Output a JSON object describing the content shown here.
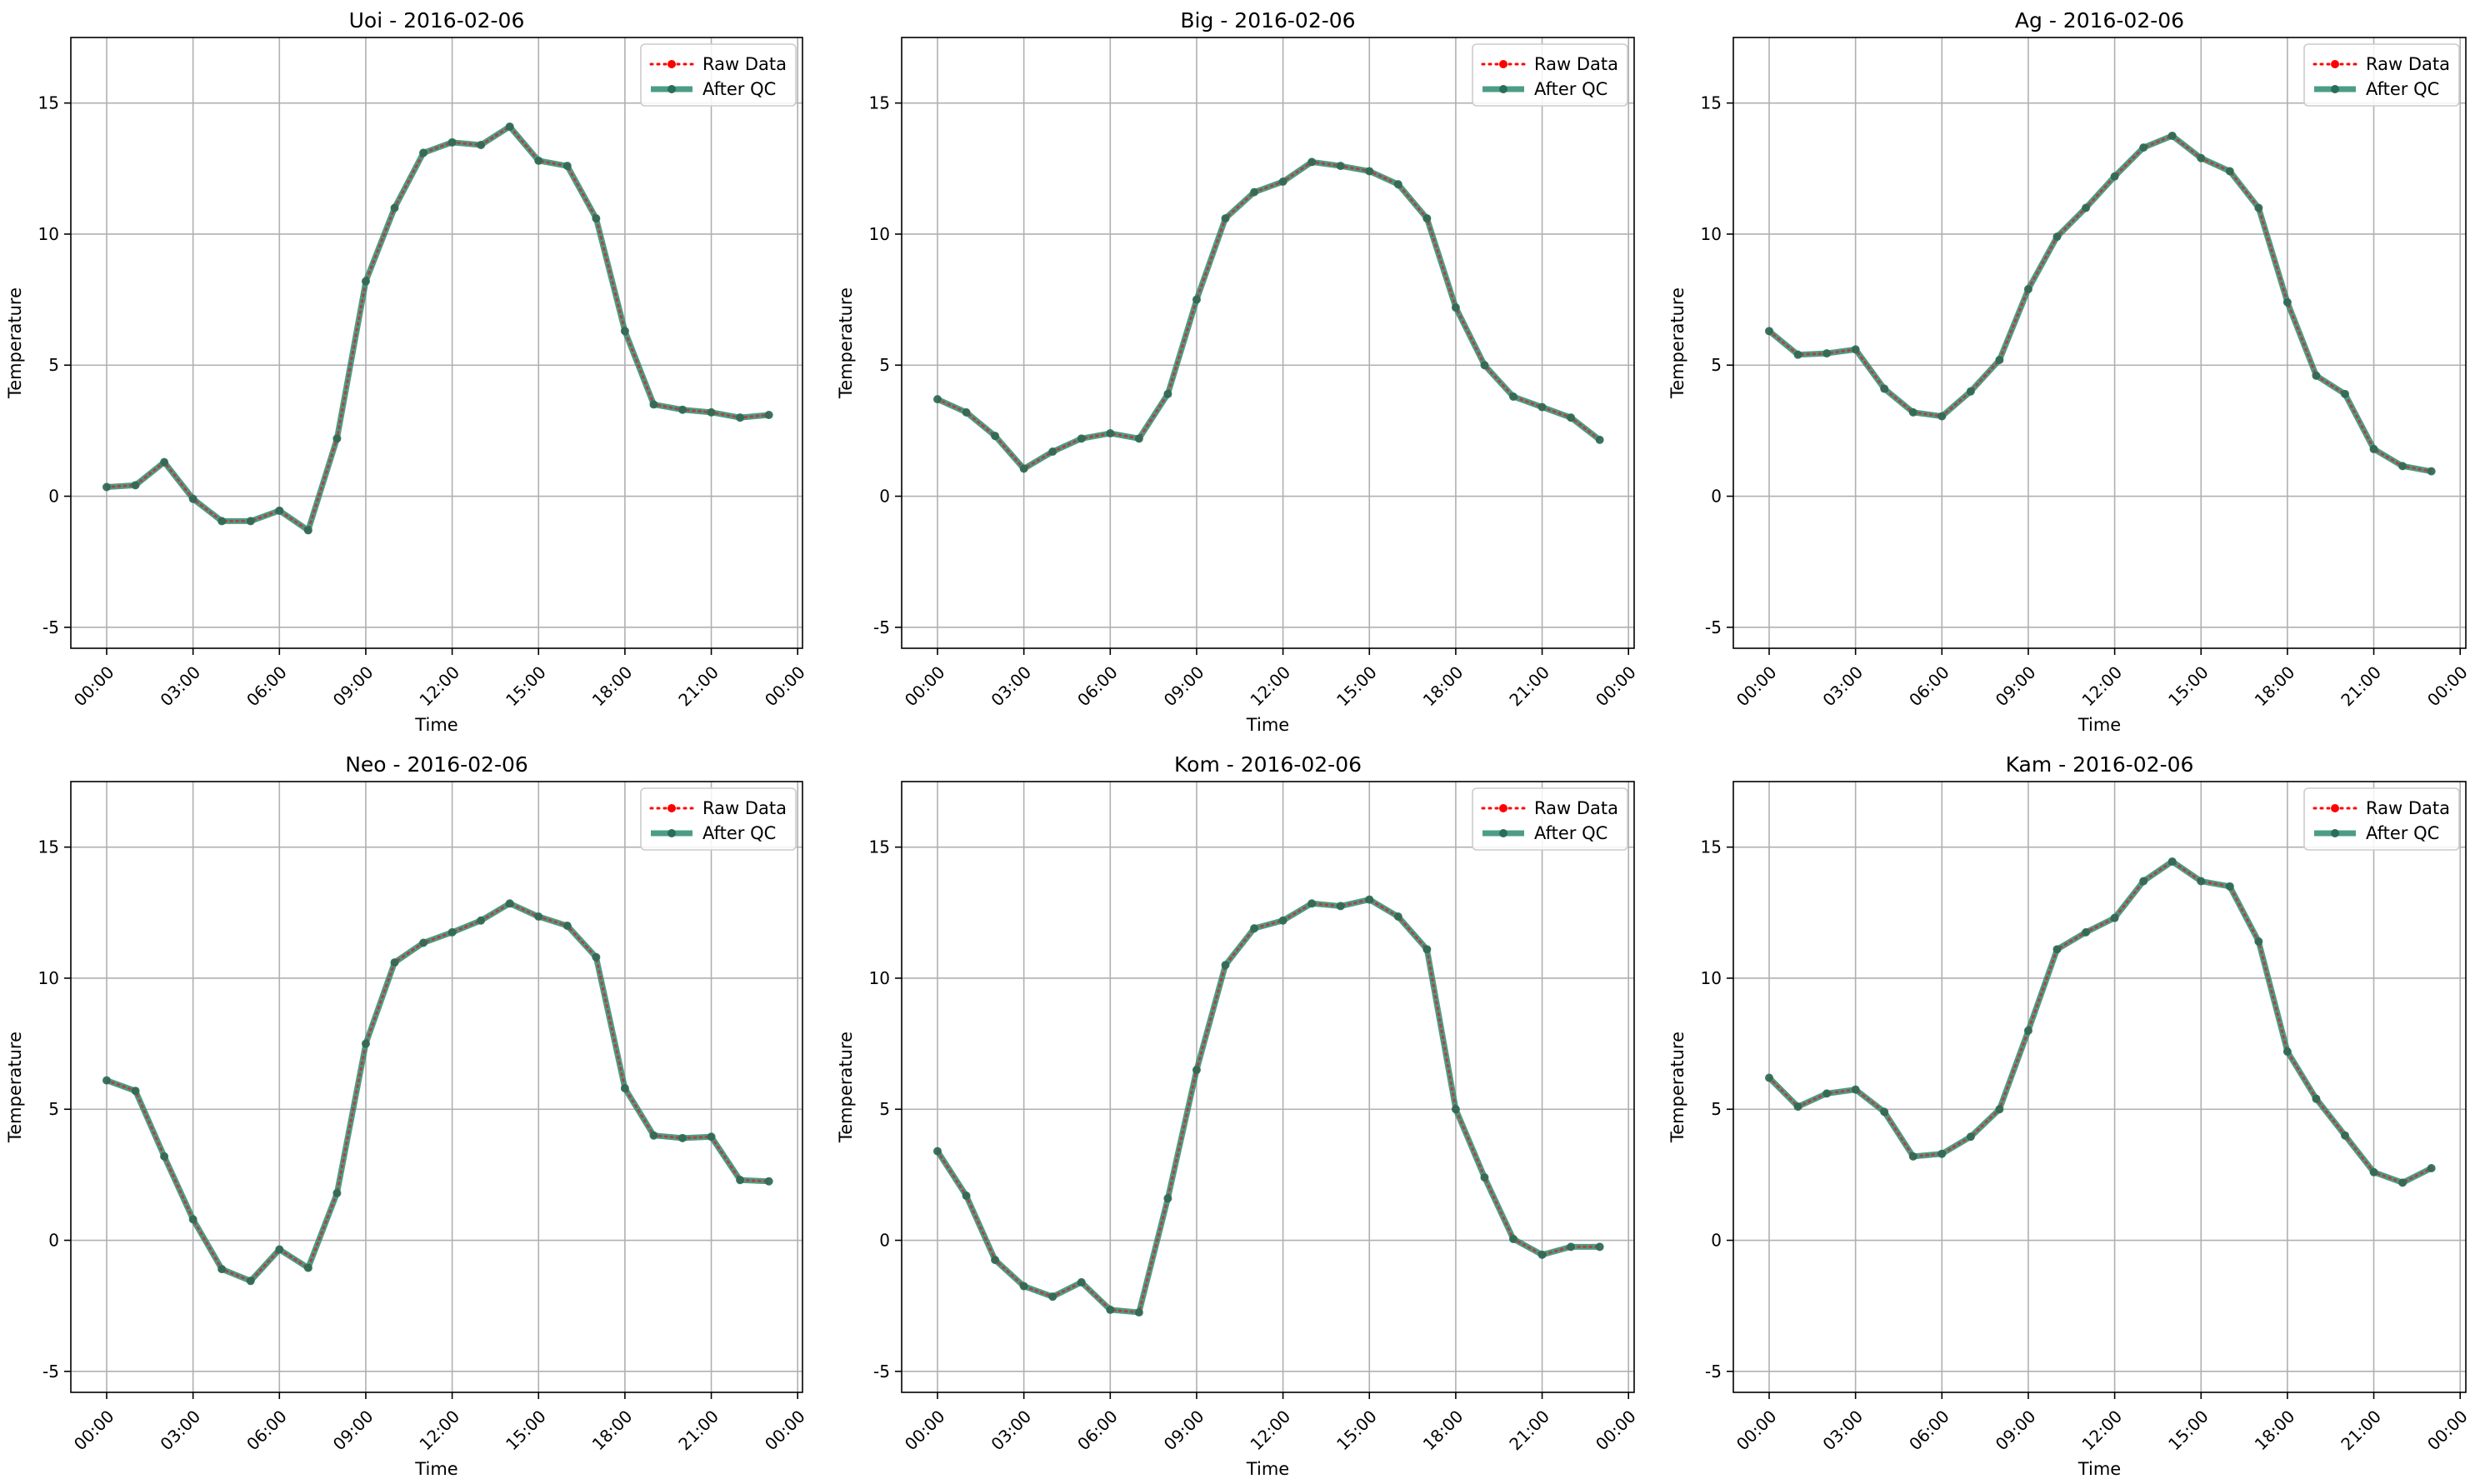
{
  "chart_data": [
    {
      "type": "line",
      "title": "Uoi - 2016-02-06",
      "xlabel": "Time",
      "ylabel": "Temperature",
      "x_tick_labels": [
        "00:00",
        "03:00",
        "06:00",
        "09:00",
        "12:00",
        "15:00",
        "18:00",
        "21:00",
        "00:00"
      ],
      "y_ticks": [
        -5,
        0,
        5,
        10,
        15
      ],
      "ylim": [
        -5.8,
        17.5
      ],
      "x": [
        "00:00",
        "01:00",
        "02:00",
        "03:00",
        "04:00",
        "05:00",
        "06:00",
        "07:00",
        "08:00",
        "09:00",
        "10:00",
        "11:00",
        "12:00",
        "13:00",
        "14:00",
        "15:00",
        "16:00",
        "17:00",
        "18:00",
        "19:00",
        "20:00",
        "21:00",
        "22:00",
        "23:00"
      ],
      "grid": true,
      "legend_position": "top-right",
      "series": [
        {
          "name": "Raw Data",
          "color": "#ff0000",
          "style": "dotted",
          "values": [
            0.35,
            0.42,
            1.3,
            -0.1,
            -0.95,
            -0.95,
            -0.55,
            -1.3,
            2.2,
            8.2,
            11.0,
            13.1,
            13.5,
            13.4,
            14.1,
            12.8,
            12.6,
            10.6,
            6.3,
            3.5,
            3.3,
            3.2,
            3.0,
            3.1
          ]
        },
        {
          "name": "After QC",
          "color": "#2e8b73",
          "style": "solid",
          "values": [
            0.35,
            0.42,
            1.3,
            -0.1,
            -0.95,
            -0.95,
            -0.55,
            -1.3,
            2.2,
            8.2,
            11.0,
            13.1,
            13.5,
            13.4,
            14.1,
            12.8,
            12.6,
            10.6,
            6.3,
            3.5,
            3.3,
            3.2,
            3.0,
            3.1
          ]
        }
      ]
    },
    {
      "type": "line",
      "title": "Big - 2016-02-06",
      "xlabel": "Time",
      "ylabel": "Temperature",
      "x_tick_labels": [
        "00:00",
        "03:00",
        "06:00",
        "09:00",
        "12:00",
        "15:00",
        "18:00",
        "21:00",
        "00:00"
      ],
      "y_ticks": [
        -5,
        0,
        5,
        10,
        15
      ],
      "ylim": [
        -5.8,
        17.5
      ],
      "x": [
        "00:00",
        "01:00",
        "02:00",
        "03:00",
        "04:00",
        "05:00",
        "06:00",
        "07:00",
        "08:00",
        "09:00",
        "10:00",
        "11:00",
        "12:00",
        "13:00",
        "14:00",
        "15:00",
        "16:00",
        "17:00",
        "18:00",
        "19:00",
        "20:00",
        "21:00",
        "22:00",
        "23:00"
      ],
      "grid": true,
      "legend_position": "top-right",
      "series": [
        {
          "name": "Raw Data",
          "color": "#ff0000",
          "style": "dotted",
          "values": [
            3.7,
            3.2,
            2.3,
            1.05,
            1.7,
            2.2,
            2.4,
            2.2,
            3.9,
            7.5,
            10.6,
            11.6,
            12.0,
            12.75,
            12.6,
            12.4,
            11.9,
            10.6,
            7.2,
            5.0,
            3.8,
            3.4,
            3.0,
            2.15
          ]
        },
        {
          "name": "After QC",
          "color": "#2e8b73",
          "style": "solid",
          "values": [
            3.7,
            3.2,
            2.3,
            1.05,
            1.7,
            2.2,
            2.4,
            2.2,
            3.9,
            7.5,
            10.6,
            11.6,
            12.0,
            12.75,
            12.6,
            12.4,
            11.9,
            10.6,
            7.2,
            5.0,
            3.8,
            3.4,
            3.0,
            2.15
          ]
        }
      ]
    },
    {
      "type": "line",
      "title": "Ag - 2016-02-06",
      "xlabel": "Time",
      "ylabel": "Temperature",
      "x_tick_labels": [
        "00:00",
        "03:00",
        "06:00",
        "09:00",
        "12:00",
        "15:00",
        "18:00",
        "21:00",
        "00:00"
      ],
      "y_ticks": [
        -5,
        0,
        5,
        10,
        15
      ],
      "ylim": [
        -5.8,
        17.5
      ],
      "x": [
        "00:00",
        "01:00",
        "02:00",
        "03:00",
        "04:00",
        "05:00",
        "06:00",
        "07:00",
        "08:00",
        "09:00",
        "10:00",
        "11:00",
        "12:00",
        "13:00",
        "14:00",
        "15:00",
        "16:00",
        "17:00",
        "18:00",
        "19:00",
        "20:00",
        "21:00",
        "22:00",
        "23:00"
      ],
      "grid": true,
      "legend_position": "top-right",
      "series": [
        {
          "name": "Raw Data",
          "color": "#ff0000",
          "style": "dotted",
          "values": [
            6.3,
            5.4,
            5.45,
            5.6,
            4.1,
            3.2,
            3.05,
            4.0,
            5.2,
            7.9,
            9.9,
            11.0,
            12.2,
            13.3,
            13.75,
            12.9,
            12.4,
            11.0,
            7.4,
            4.6,
            3.9,
            1.8,
            1.15,
            0.95
          ]
        },
        {
          "name": "After QC",
          "color": "#2e8b73",
          "style": "solid",
          "values": [
            6.3,
            5.4,
            5.45,
            5.6,
            4.1,
            3.2,
            3.05,
            4.0,
            5.2,
            7.9,
            9.9,
            11.0,
            12.2,
            13.3,
            13.75,
            12.9,
            12.4,
            11.0,
            7.4,
            4.6,
            3.9,
            1.8,
            1.15,
            0.95
          ]
        }
      ]
    },
    {
      "type": "line",
      "title": "Neo - 2016-02-06",
      "xlabel": "Time",
      "ylabel": "Temperature",
      "x_tick_labels": [
        "00:00",
        "03:00",
        "06:00",
        "09:00",
        "12:00",
        "15:00",
        "18:00",
        "21:00",
        "00:00"
      ],
      "y_ticks": [
        -5,
        0,
        5,
        10,
        15
      ],
      "ylim": [
        -5.8,
        17.5
      ],
      "x": [
        "00:00",
        "01:00",
        "02:00",
        "03:00",
        "04:00",
        "05:00",
        "06:00",
        "07:00",
        "08:00",
        "09:00",
        "10:00",
        "11:00",
        "12:00",
        "13:00",
        "14:00",
        "15:00",
        "16:00",
        "17:00",
        "18:00",
        "19:00",
        "20:00",
        "21:00",
        "22:00",
        "23:00"
      ],
      "grid": true,
      "legend_position": "top-right",
      "series": [
        {
          "name": "Raw Data",
          "color": "#ff0000",
          "style": "dotted",
          "values": [
            6.1,
            5.7,
            3.2,
            0.8,
            -1.1,
            -1.55,
            -0.35,
            -1.05,
            1.8,
            7.5,
            10.6,
            11.35,
            11.75,
            12.2,
            12.85,
            12.35,
            12.0,
            10.8,
            5.8,
            4.0,
            3.9,
            3.95,
            2.3,
            2.25
          ]
        },
        {
          "name": "After QC",
          "color": "#2e8b73",
          "style": "solid",
          "values": [
            6.1,
            5.7,
            3.2,
            0.8,
            -1.1,
            -1.55,
            -0.35,
            -1.05,
            1.8,
            7.5,
            10.6,
            11.35,
            11.75,
            12.2,
            12.85,
            12.35,
            12.0,
            10.8,
            5.8,
            4.0,
            3.9,
            3.95,
            2.3,
            2.25
          ]
        }
      ]
    },
    {
      "type": "line",
      "title": "Kom - 2016-02-06",
      "xlabel": "Time",
      "ylabel": "Temperature",
      "x_tick_labels": [
        "00:00",
        "03:00",
        "06:00",
        "09:00",
        "12:00",
        "15:00",
        "18:00",
        "21:00",
        "00:00"
      ],
      "y_ticks": [
        -5,
        0,
        5,
        10,
        15
      ],
      "ylim": [
        -5.8,
        17.5
      ],
      "x": [
        "00:00",
        "01:00",
        "02:00",
        "03:00",
        "04:00",
        "05:00",
        "06:00",
        "07:00",
        "08:00",
        "09:00",
        "10:00",
        "11:00",
        "12:00",
        "13:00",
        "14:00",
        "15:00",
        "16:00",
        "17:00",
        "18:00",
        "19:00",
        "20:00",
        "21:00",
        "22:00",
        "23:00"
      ],
      "grid": true,
      "legend_position": "top-right",
      "series": [
        {
          "name": "Raw Data",
          "color": "#ff0000",
          "style": "dotted",
          "values": [
            3.4,
            1.7,
            -0.75,
            -1.75,
            -2.15,
            -1.6,
            -2.65,
            -2.75,
            1.6,
            6.5,
            10.5,
            11.9,
            12.2,
            12.85,
            12.75,
            13.0,
            12.35,
            11.1,
            5.0,
            2.4,
            0.05,
            -0.55,
            -0.25,
            -0.25
          ]
        },
        {
          "name": "After QC",
          "color": "#2e8b73",
          "style": "solid",
          "values": [
            3.4,
            1.7,
            -0.75,
            -1.75,
            -2.15,
            -1.6,
            -2.65,
            -2.75,
            1.6,
            6.5,
            10.5,
            11.9,
            12.2,
            12.85,
            12.75,
            13.0,
            12.35,
            11.1,
            5.0,
            2.4,
            0.05,
            -0.55,
            -0.25,
            -0.25
          ]
        }
      ]
    },
    {
      "type": "line",
      "title": "Kam - 2016-02-06",
      "xlabel": "Time",
      "ylabel": "Temperature",
      "x_tick_labels": [
        "00:00",
        "03:00",
        "06:00",
        "09:00",
        "12:00",
        "15:00",
        "18:00",
        "21:00",
        "00:00"
      ],
      "y_ticks": [
        -5,
        0,
        5,
        10,
        15
      ],
      "ylim": [
        -5.8,
        17.5
      ],
      "x": [
        "00:00",
        "01:00",
        "02:00",
        "03:00",
        "04:00",
        "05:00",
        "06:00",
        "07:00",
        "08:00",
        "09:00",
        "10:00",
        "11:00",
        "12:00",
        "13:00",
        "14:00",
        "15:00",
        "16:00",
        "17:00",
        "18:00",
        "19:00",
        "20:00",
        "21:00",
        "22:00",
        "23:00"
      ],
      "grid": true,
      "legend_position": "top-right",
      "series": [
        {
          "name": "Raw Data",
          "color": "#ff0000",
          "style": "dotted",
          "values": [
            6.2,
            5.1,
            5.6,
            5.75,
            4.9,
            3.2,
            3.3,
            3.95,
            5.0,
            8.0,
            11.1,
            11.75,
            12.3,
            13.7,
            14.45,
            13.7,
            13.5,
            11.4,
            7.2,
            5.4,
            4.0,
            2.6,
            2.2,
            2.75
          ]
        },
        {
          "name": "After QC",
          "color": "#2e8b73",
          "style": "solid",
          "values": [
            6.2,
            5.1,
            5.6,
            5.75,
            4.9,
            3.2,
            3.3,
            3.95,
            5.0,
            8.0,
            11.1,
            11.75,
            12.3,
            13.7,
            14.45,
            13.7,
            13.5,
            11.4,
            7.2,
            5.4,
            4.0,
            2.6,
            2.2,
            2.75
          ]
        }
      ]
    }
  ]
}
